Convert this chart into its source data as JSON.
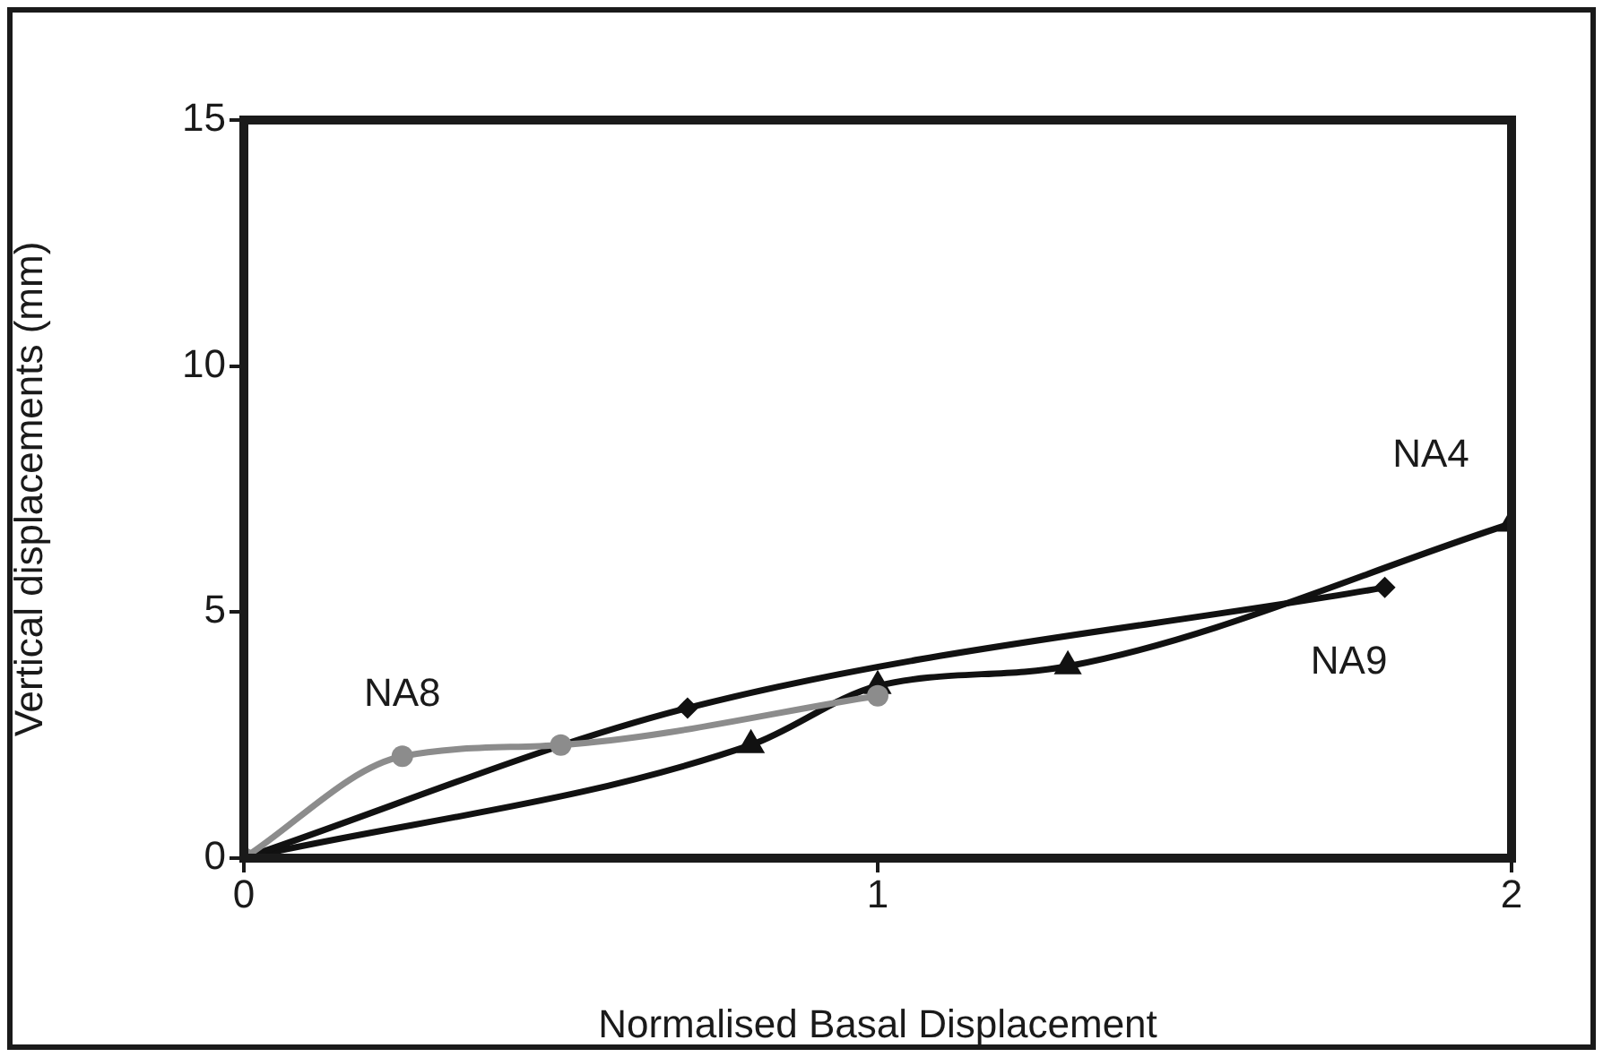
{
  "chart_data": {
    "type": "line",
    "xlabel": "Normalised Basal Displacement",
    "ylabel": "Vertical displacements (mm)",
    "xlim": [
      0,
      2
    ],
    "xticks": [
      0,
      1,
      2
    ],
    "ylim": [
      0,
      15
    ],
    "yticks": [
      0,
      5,
      10,
      15
    ],
    "grid": false,
    "legend": false,
    "line_style": "solid",
    "series": [
      {
        "name": "NA8",
        "color": "#8c8c8c",
        "marker": "circle",
        "x": [
          0,
          0.25,
          0.5,
          1.0
        ],
        "values": [
          0,
          2.07,
          2.3,
          3.3
        ]
      },
      {
        "name": "NA9",
        "color": "#111111",
        "marker": "diamond",
        "x": [
          0,
          0.7,
          1.8
        ],
        "values": [
          0,
          3.05,
          5.5
        ]
      },
      {
        "name": "NA4",
        "color": "#111111",
        "marker": "triangle",
        "x": [
          0,
          0.8,
          1.0,
          1.3,
          2.0
        ],
        "values": [
          0,
          2.3,
          3.5,
          3.9,
          6.8
        ]
      }
    ]
  }
}
